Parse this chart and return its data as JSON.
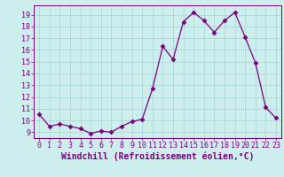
{
  "x": [
    0,
    1,
    2,
    3,
    4,
    5,
    6,
    7,
    8,
    9,
    10,
    11,
    12,
    13,
    14,
    15,
    16,
    17,
    18,
    19,
    20,
    21,
    22,
    23
  ],
  "y": [
    10.5,
    9.5,
    9.7,
    9.5,
    9.3,
    8.9,
    9.1,
    9.0,
    9.5,
    9.9,
    10.1,
    12.7,
    16.3,
    15.2,
    18.4,
    19.2,
    18.5,
    17.5,
    18.5,
    19.2,
    17.1,
    14.9,
    11.1,
    10.2
  ],
  "line_color": "#7b0080",
  "marker": "D",
  "marker_size": 2.5,
  "bg_color": "#cceeed",
  "grid_color": "#aad4d4",
  "xlabel": "Windchill (Refroidissement éolien,°C)",
  "ylim": [
    8.5,
    19.8
  ],
  "yticks": [
    9,
    10,
    11,
    12,
    13,
    14,
    15,
    16,
    17,
    18,
    19
  ],
  "xticks": [
    0,
    1,
    2,
    3,
    4,
    5,
    6,
    7,
    8,
    9,
    10,
    11,
    12,
    13,
    14,
    15,
    16,
    17,
    18,
    19,
    20,
    21,
    22,
    23
  ],
  "axis_color": "#7b0080",
  "tick_color": "#7b0080",
  "label_fontsize": 7,
  "tick_fontsize": 6
}
